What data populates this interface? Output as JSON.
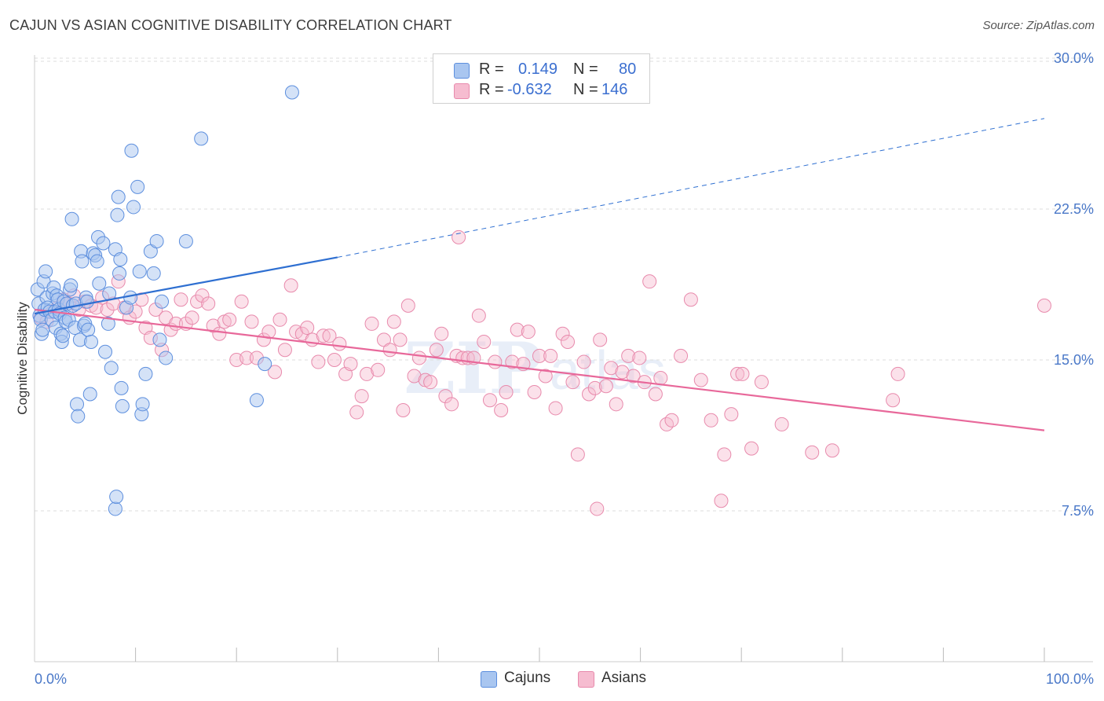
{
  "header": {
    "title": "CAJUN VS ASIAN COGNITIVE DISABILITY CORRELATION CHART",
    "source": "Source: ZipAtlas.com"
  },
  "legend": {
    "rows": [
      {
        "r_label": "R =",
        "r_value": "0.149",
        "n_label": "N =",
        "n_value": "80",
        "color": "#a9c6f0",
        "border": "#6f9be0"
      },
      {
        "r_label": "R =",
        "r_value": "-0.632",
        "n_label": "N =",
        "n_value": "146",
        "color": "#f6bcd0",
        "border": "#e88aac"
      }
    ]
  },
  "bottom_legend": {
    "cajuns": "Cajuns",
    "asians": "Asians"
  },
  "colors": {
    "cajun_fill": "#a9c6f0",
    "cajun_stroke": "#5d8fde",
    "cajun_line": "#2e6fd1",
    "asian_fill": "#f6bcd0",
    "asian_stroke": "#e88aac",
    "asian_line": "#e8689a",
    "grid": "#dddddd",
    "tick_text": "#4a78c8",
    "watermark": "#e8eef8"
  },
  "watermark": {
    "zip": "ZIP",
    "atlas": "atlas"
  },
  "chart_data": {
    "type": "scatter",
    "xlabel": "",
    "ylabel": "Cognitive Disability",
    "xlim": [
      0,
      100
    ],
    "ylim": [
      0,
      31
    ],
    "x_tick_labels": [
      "0.0%",
      "100.0%"
    ],
    "y_ticks": [
      {
        "value": 7.5,
        "label": "7.5%"
      },
      {
        "value": 15.0,
        "label": "15.0%"
      },
      {
        "value": 22.5,
        "label": "22.5%"
      },
      {
        "value": 30.0,
        "label": "30.0%"
      }
    ],
    "grid": "horizontal dashed",
    "series": [
      {
        "name": "Cajuns",
        "trend": {
          "x0": 0,
          "y0": 17.3,
          "x1": 30,
          "y1": 20.1,
          "dashed_to_x": 100,
          "dashed_to_y": 27.0
        },
        "points": [
          [
            0.3,
            18.5
          ],
          [
            0.4,
            17.8
          ],
          [
            0.5,
            17.2
          ],
          [
            0.6,
            17.0
          ],
          [
            0.7,
            16.3
          ],
          [
            0.8,
            16.5
          ],
          [
            0.9,
            18.9
          ],
          [
            1.0,
            17.5
          ],
          [
            1.1,
            19.4
          ],
          [
            1.2,
            18.1
          ],
          [
            1.3,
            17.6
          ],
          [
            1.5,
            17.4
          ],
          [
            1.7,
            17.0
          ],
          [
            1.8,
            18.3
          ],
          [
            1.9,
            18.6
          ],
          [
            2.0,
            17.4
          ],
          [
            2.1,
            16.6
          ],
          [
            2.2,
            18.2
          ],
          [
            2.3,
            18.0
          ],
          [
            2.4,
            17.5
          ],
          [
            2.5,
            17.3
          ],
          [
            2.6,
            16.3
          ],
          [
            2.7,
            15.9
          ],
          [
            2.8,
            16.2
          ],
          [
            2.9,
            17.9
          ],
          [
            3.0,
            17.1
          ],
          [
            3.1,
            16.9
          ],
          [
            3.2,
            17.8
          ],
          [
            3.4,
            17.0
          ],
          [
            3.5,
            18.5
          ],
          [
            3.6,
            18.7
          ],
          [
            3.7,
            22.0
          ],
          [
            3.8,
            17.7
          ],
          [
            4.0,
            16.6
          ],
          [
            4.1,
            17.8
          ],
          [
            4.2,
            12.8
          ],
          [
            4.3,
            12.2
          ],
          [
            4.5,
            16.0
          ],
          [
            4.6,
            20.4
          ],
          [
            4.7,
            19.9
          ],
          [
            4.9,
            16.7
          ],
          [
            5.0,
            16.8
          ],
          [
            5.1,
            18.1
          ],
          [
            5.2,
            17.9
          ],
          [
            5.3,
            16.5
          ],
          [
            5.5,
            13.3
          ],
          [
            5.6,
            15.9
          ],
          [
            5.8,
            20.3
          ],
          [
            6.0,
            20.2
          ],
          [
            6.2,
            19.9
          ],
          [
            6.3,
            21.1
          ],
          [
            6.4,
            18.8
          ],
          [
            6.8,
            20.8
          ],
          [
            7.0,
            15.4
          ],
          [
            7.3,
            16.8
          ],
          [
            7.4,
            18.3
          ],
          [
            7.6,
            14.6
          ],
          [
            8.0,
            7.6
          ],
          [
            8.1,
            8.2
          ],
          [
            8.0,
            20.5
          ],
          [
            8.2,
            22.2
          ],
          [
            8.3,
            23.1
          ],
          [
            8.4,
            19.3
          ],
          [
            8.5,
            20.0
          ],
          [
            8.6,
            13.6
          ],
          [
            8.7,
            12.7
          ],
          [
            9.1,
            17.6
          ],
          [
            9.5,
            18.1
          ],
          [
            9.6,
            25.4
          ],
          [
            9.8,
            22.6
          ],
          [
            10.2,
            23.6
          ],
          [
            10.4,
            19.4
          ],
          [
            10.6,
            12.3
          ],
          [
            10.7,
            12.8
          ],
          [
            11.0,
            14.3
          ],
          [
            11.5,
            20.4
          ],
          [
            11.8,
            19.3
          ],
          [
            12.1,
            20.9
          ],
          [
            12.4,
            16.0
          ],
          [
            12.6,
            17.9
          ],
          [
            13.0,
            15.1
          ],
          [
            15.0,
            20.9
          ],
          [
            16.5,
            26.0
          ],
          [
            22.0,
            13.0
          ],
          [
            22.8,
            14.8
          ],
          [
            25.5,
            28.3
          ]
        ]
      },
      {
        "name": "Asians",
        "trend": {
          "x0": 0,
          "y0": 17.5,
          "x1": 100,
          "y1": 11.5
        },
        "points": [
          [
            0.6,
            17.1
          ],
          [
            1.2,
            16.9
          ],
          [
            1.8,
            17.4
          ],
          [
            2.3,
            17.6
          ],
          [
            2.9,
            18.0
          ],
          [
            3.4,
            17.8
          ],
          [
            3.9,
            18.2
          ],
          [
            4.4,
            17.5
          ],
          [
            5.0,
            17.9
          ],
          [
            5.6,
            17.7
          ],
          [
            6.1,
            17.6
          ],
          [
            6.7,
            18.1
          ],
          [
            7.2,
            17.5
          ],
          [
            7.8,
            17.8
          ],
          [
            8.3,
            18.9
          ],
          [
            8.9,
            17.6
          ],
          [
            9.4,
            17.1
          ],
          [
            10.0,
            17.4
          ],
          [
            10.6,
            18.0
          ],
          [
            11.0,
            16.6
          ],
          [
            11.5,
            16.1
          ],
          [
            12.0,
            17.5
          ],
          [
            12.6,
            15.5
          ],
          [
            13.0,
            17.1
          ],
          [
            13.5,
            16.5
          ],
          [
            14.0,
            16.8
          ],
          [
            14.5,
            18.0
          ],
          [
            15.0,
            16.8
          ],
          [
            15.6,
            17.1
          ],
          [
            16.1,
            17.9
          ],
          [
            16.6,
            18.2
          ],
          [
            17.2,
            17.8
          ],
          [
            17.7,
            16.7
          ],
          [
            18.3,
            16.3
          ],
          [
            18.8,
            16.9
          ],
          [
            19.3,
            17.0
          ],
          [
            20.0,
            15.0
          ],
          [
            20.5,
            17.9
          ],
          [
            21.0,
            15.1
          ],
          [
            21.5,
            16.9
          ],
          [
            22.0,
            15.1
          ],
          [
            22.7,
            16.0
          ],
          [
            23.2,
            16.4
          ],
          [
            23.8,
            14.4
          ],
          [
            24.3,
            17.0
          ],
          [
            24.8,
            15.5
          ],
          [
            25.4,
            18.7
          ],
          [
            25.9,
            16.4
          ],
          [
            26.5,
            16.3
          ],
          [
            27.0,
            16.6
          ],
          [
            27.5,
            16.0
          ],
          [
            28.1,
            14.9
          ],
          [
            28.6,
            16.2
          ],
          [
            29.2,
            16.2
          ],
          [
            29.7,
            15.0
          ],
          [
            30.2,
            15.8
          ],
          [
            30.8,
            14.3
          ],
          [
            31.3,
            14.8
          ],
          [
            31.9,
            12.4
          ],
          [
            32.4,
            13.2
          ],
          [
            32.9,
            14.3
          ],
          [
            33.4,
            16.8
          ],
          [
            34.0,
            14.5
          ],
          [
            34.6,
            16.0
          ],
          [
            35.2,
            15.5
          ],
          [
            35.6,
            16.9
          ],
          [
            36.2,
            16.0
          ],
          [
            36.5,
            12.5
          ],
          [
            37.0,
            17.7
          ],
          [
            37.6,
            14.2
          ],
          [
            38.1,
            15.1
          ],
          [
            38.7,
            14.0
          ],
          [
            39.2,
            13.9
          ],
          [
            39.8,
            15.5
          ],
          [
            40.3,
            16.3
          ],
          [
            40.7,
            13.2
          ],
          [
            41.3,
            12.8
          ],
          [
            41.8,
            15.2
          ],
          [
            42.4,
            15.1
          ],
          [
            42.9,
            15.1
          ],
          [
            43.5,
            15.1
          ],
          [
            44.0,
            17.2
          ],
          [
            44.5,
            15.9
          ],
          [
            45.1,
            13.0
          ],
          [
            45.6,
            14.9
          ],
          [
            46.2,
            12.5
          ],
          [
            46.7,
            13.4
          ],
          [
            47.3,
            14.9
          ],
          [
            47.8,
            16.5
          ],
          [
            48.4,
            14.8
          ],
          [
            48.9,
            16.4
          ],
          [
            49.5,
            13.4
          ],
          [
            50.0,
            15.2
          ],
          [
            50.6,
            14.2
          ],
          [
            51.1,
            15.2
          ],
          [
            51.6,
            12.6
          ],
          [
            52.3,
            16.3
          ],
          [
            52.8,
            15.9
          ],
          [
            53.3,
            13.9
          ],
          [
            53.8,
            10.3
          ],
          [
            54.4,
            14.9
          ],
          [
            54.9,
            13.3
          ],
          [
            55.5,
            13.6
          ],
          [
            56.0,
            16.0
          ],
          [
            56.6,
            13.7
          ],
          [
            57.1,
            14.6
          ],
          [
            57.6,
            12.8
          ],
          [
            58.2,
            14.4
          ],
          [
            58.8,
            15.2
          ],
          [
            59.3,
            14.2
          ],
          [
            59.9,
            15.1
          ],
          [
            60.4,
            13.9
          ],
          [
            60.9,
            18.9
          ],
          [
            61.5,
            13.3
          ],
          [
            62.0,
            14.1
          ],
          [
            62.6,
            11.8
          ],
          [
            63.1,
            12.0
          ],
          [
            64.0,
            15.2
          ],
          [
            65.0,
            18.0
          ],
          [
            66.0,
            14.0
          ],
          [
            67.0,
            12.0
          ],
          [
            68.0,
            8.0
          ],
          [
            68.3,
            10.3
          ],
          [
            69.0,
            12.3
          ],
          [
            69.6,
            14.3
          ],
          [
            70.1,
            14.3
          ],
          [
            71.0,
            10.6
          ],
          [
            72.0,
            13.9
          ],
          [
            74.0,
            11.8
          ],
          [
            77.0,
            10.4
          ],
          [
            79.0,
            10.5
          ],
          [
            85.0,
            13.0
          ],
          [
            85.5,
            14.3
          ],
          [
            100.0,
            17.7
          ],
          [
            42.0,
            21.1
          ],
          [
            55.7,
            7.6
          ]
        ]
      }
    ]
  }
}
